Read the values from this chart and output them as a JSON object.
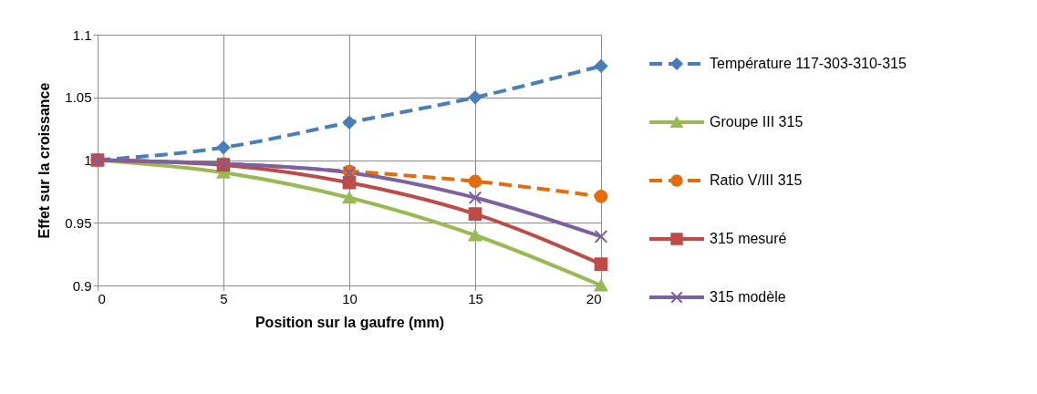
{
  "chart_data": {
    "type": "line",
    "xlabel": "Position sur la gaufre (mm)",
    "ylabel": "Effet sur la croissance",
    "x": [
      0,
      5,
      10,
      15,
      20
    ],
    "xlim": [
      0,
      20
    ],
    "xticks": [
      0,
      5,
      10,
      15,
      20
    ],
    "ylim": [
      0.9,
      1.1
    ],
    "yticks": [
      0.9,
      0.95,
      1,
      1.05,
      1.1
    ],
    "grid": true,
    "legend": "right",
    "series": [
      {
        "name": "Température 117-303-310-315",
        "color": "#4a7ebb",
        "marker": "diamond",
        "line_style": "dashed",
        "values": [
          1.0,
          1.01,
          1.03,
          1.05,
          1.075
        ]
      },
      {
        "name": "Groupe III 315",
        "color": "#98b954",
        "marker": "triangle",
        "line_style": "solid",
        "values": [
          1.0,
          0.99,
          0.97,
          0.94,
          0.9
        ]
      },
      {
        "name": "Ratio V/III 315",
        "color": "#e46c0a",
        "marker": "circle",
        "line_style": "dashed",
        "values": [
          1.0,
          0.997,
          0.991,
          0.983,
          0.971
        ]
      },
      {
        "name": "315 mesuré",
        "color": "#be4b48",
        "marker": "square",
        "line_style": "solid",
        "values": [
          1.0,
          0.996,
          0.982,
          0.957,
          0.917
        ]
      },
      {
        "name": "315 modèle",
        "color": "#7d60a0",
        "marker": "cross",
        "line_style": "solid",
        "values": [
          1.0,
          0.997,
          0.99,
          0.97,
          0.939
        ]
      }
    ]
  }
}
